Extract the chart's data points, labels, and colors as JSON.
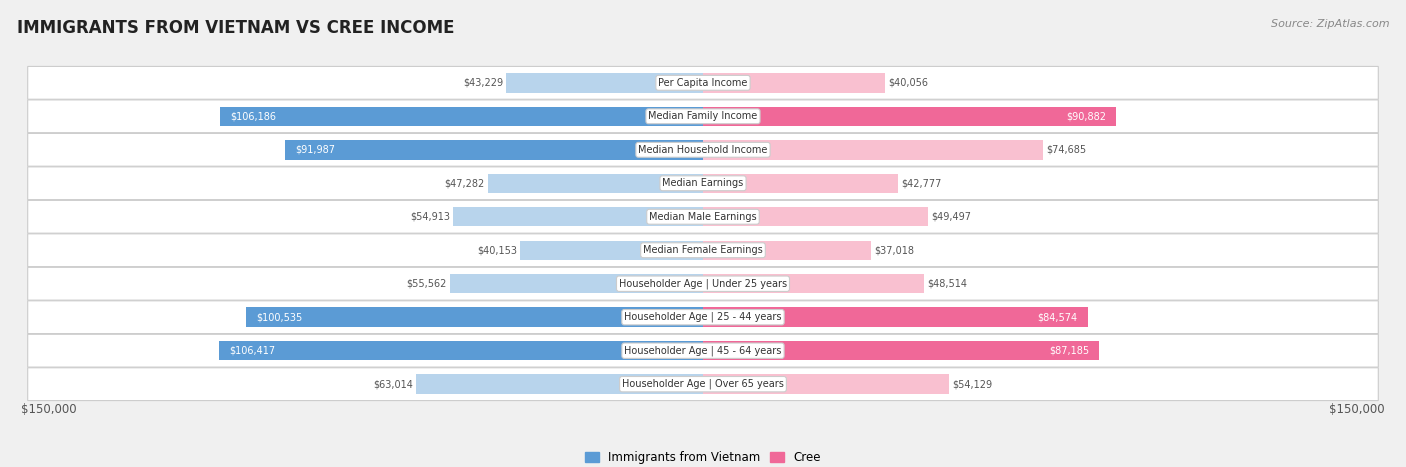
{
  "title": "IMMIGRANTS FROM VIETNAM VS CREE INCOME",
  "source": "Source: ZipAtlas.com",
  "categories": [
    "Per Capita Income",
    "Median Family Income",
    "Median Household Income",
    "Median Earnings",
    "Median Male Earnings",
    "Median Female Earnings",
    "Householder Age | Under 25 years",
    "Householder Age | 25 - 44 years",
    "Householder Age | 45 - 64 years",
    "Householder Age | Over 65 years"
  ],
  "vietnam_values": [
    43229,
    106186,
    91987,
    47282,
    54913,
    40153,
    55562,
    100535,
    106417,
    63014
  ],
  "cree_values": [
    40056,
    90882,
    74685,
    42777,
    49497,
    37018,
    48514,
    84574,
    87185,
    54129
  ],
  "vietnam_labels": [
    "$43,229",
    "$106,186",
    "$91,987",
    "$47,282",
    "$54,913",
    "$40,153",
    "$55,562",
    "$100,535",
    "$106,417",
    "$63,014"
  ],
  "cree_labels": [
    "$40,056",
    "$90,882",
    "$74,685",
    "$42,777",
    "$49,497",
    "$37,018",
    "$48,514",
    "$84,574",
    "$87,185",
    "$54,129"
  ],
  "vietnam_color_light": "#b8d4ec",
  "vietnam_color_dark": "#5b9bd5",
  "cree_color_light": "#f9c0d0",
  "cree_color_dark": "#f06898",
  "vietnam_dark_threshold": 80000,
  "cree_dark_threshold": 80000,
  "max_val": 150000,
  "legend_vietnam": "Immigrants from Vietnam",
  "legend_cree": "Cree",
  "xlabel_left": "$150,000",
  "xlabel_right": "$150,000",
  "background_color": "#f0f0f0",
  "row_color": "#ffffff",
  "row_border": "#cccccc",
  "title_color": "#222222",
  "source_color": "#888888",
  "label_dark_color": "#ffffff",
  "label_light_color": "#555555"
}
